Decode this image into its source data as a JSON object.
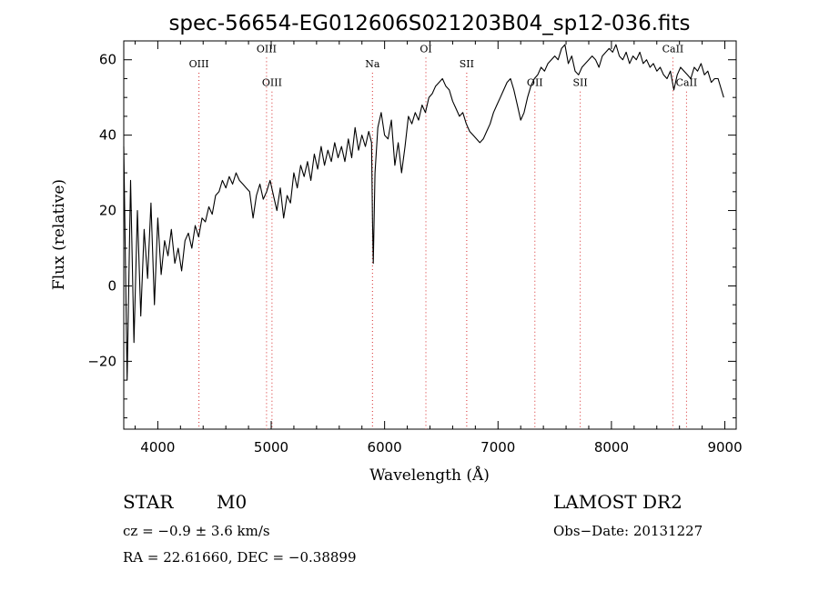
{
  "chart_data": {
    "type": "line",
    "title": "spec-56654-EG012606S021203B04_sp12-036.fits",
    "xlabel": "Wavelength (Å)",
    "ylabel": "Flux (relative)",
    "xlim": [
      3700,
      9100
    ],
    "ylim": [
      -38,
      65
    ],
    "x_ticks": [
      4000,
      5000,
      6000,
      7000,
      8000,
      9000
    ],
    "y_ticks": [
      -20,
      0,
      20,
      40,
      60
    ],
    "grid": false,
    "series": [
      {
        "color": "#000000",
        "x": [
          3700,
          3730,
          3760,
          3790,
          3820,
          3850,
          3880,
          3910,
          3940,
          3970,
          4000,
          4030,
          4060,
          4090,
          4120,
          4150,
          4180,
          4210,
          4240,
          4270,
          4300,
          4330,
          4360,
          4390,
          4420,
          4450,
          4480,
          4510,
          4540,
          4570,
          4600,
          4630,
          4660,
          4690,
          4720,
          4750,
          4780,
          4810,
          4840,
          4870,
          4900,
          4930,
          4960,
          4990,
          5020,
          5050,
          5080,
          5110,
          5140,
          5170,
          5200,
          5230,
          5260,
          5290,
          5320,
          5350,
          5380,
          5410,
          5440,
          5470,
          5500,
          5530,
          5560,
          5590,
          5620,
          5650,
          5680,
          5710,
          5740,
          5770,
          5800,
          5830,
          5860,
          5885,
          5893,
          5900,
          5915,
          5940,
          5970,
          6000,
          6030,
          6060,
          6090,
          6120,
          6150,
          6180,
          6210,
          6240,
          6270,
          6300,
          6330,
          6360,
          6390,
          6420,
          6450,
          6480,
          6510,
          6540,
          6570,
          6600,
          6630,
          6660,
          6690,
          6720,
          6750,
          6780,
          6810,
          6840,
          6870,
          6900,
          6930,
          6960,
          6990,
          7020,
          7050,
          7080,
          7110,
          7140,
          7170,
          7200,
          7230,
          7260,
          7290,
          7320,
          7350,
          7380,
          7410,
          7440,
          7470,
          7500,
          7530,
          7560,
          7590,
          7620,
          7650,
          7680,
          7710,
          7740,
          7770,
          7800,
          7830,
          7860,
          7890,
          7920,
          7950,
          7980,
          8010,
          8040,
          8070,
          8100,
          8130,
          8160,
          8190,
          8220,
          8250,
          8280,
          8310,
          8340,
          8370,
          8400,
          8430,
          8460,
          8490,
          8520,
          8550,
          8580,
          8610,
          8640,
          8670,
          8700,
          8730,
          8760,
          8790,
          8820,
          8850,
          8880,
          8910,
          8940,
          8970,
          8990
        ],
        "y": [
          37,
          -25,
          28,
          -15,
          20,
          -8,
          15,
          2,
          22,
          -5,
          18,
          3,
          12,
          8,
          15,
          6,
          10,
          4,
          12,
          14,
          10,
          16,
          13,
          18,
          17,
          21,
          19,
          24,
          25,
          28,
          26,
          29,
          27,
          30,
          28,
          27,
          26,
          25,
          18,
          24,
          27,
          23,
          25,
          28,
          24,
          20,
          26,
          18,
          24,
          22,
          30,
          26,
          32,
          29,
          33,
          28,
          35,
          31,
          37,
          32,
          36,
          33,
          38,
          34,
          37,
          33,
          39,
          34,
          42,
          36,
          40,
          37,
          41,
          38,
          18,
          6,
          30,
          42,
          46,
          40,
          39,
          44,
          32,
          38,
          30,
          37,
          45,
          43,
          46,
          44,
          48,
          46,
          50,
          51,
          53,
          54,
          55,
          53,
          52,
          49,
          47,
          45,
          46,
          43,
          41,
          40,
          39,
          38,
          39,
          41,
          43,
          46,
          48,
          50,
          52,
          54,
          55,
          52,
          48,
          44,
          46,
          50,
          53,
          55,
          56,
          58,
          57,
          59,
          60,
          61,
          60,
          63,
          64,
          59,
          61,
          57,
          56,
          58,
          59,
          60,
          61,
          60,
          58,
          61,
          62,
          63,
          62,
          64,
          61,
          60,
          62,
          59,
          61,
          60,
          62,
          59,
          60,
          58,
          59,
          57,
          58,
          56,
          55,
          57,
          52,
          56,
          58,
          57,
          56,
          55,
          58,
          57,
          59,
          56,
          57,
          54,
          55,
          55,
          52,
          50
        ]
      }
    ],
    "annotations": [
      {
        "label": "OIII",
        "x": 4363,
        "y": 58
      },
      {
        "label": "OIII",
        "x": 4959,
        "y": 62
      },
      {
        "label": "OIII",
        "x": 5007,
        "y": 53
      },
      {
        "label": "Na",
        "x": 5893,
        "y": 58
      },
      {
        "label": "OI",
        "x": 6364,
        "y": 62
      },
      {
        "label": "SII",
        "x": 6724,
        "y": 58
      },
      {
        "label": "OII",
        "x": 7325,
        "y": 53
      },
      {
        "label": "SII",
        "x": 7725,
        "y": 53
      },
      {
        "label": "CaII",
        "x": 8542,
        "y": 62
      },
      {
        "label": "CaII",
        "x": 8662,
        "y": 53
      }
    ]
  },
  "info": {
    "object_class": "STAR",
    "subclass": "M0",
    "cz": "cz = −0.9 ± 3.6 km/s",
    "coords": "RA =  22.61660, DEC =  −0.38899",
    "survey": "LAMOST DR2",
    "obs_date": "Obs−Date: 20131227"
  }
}
